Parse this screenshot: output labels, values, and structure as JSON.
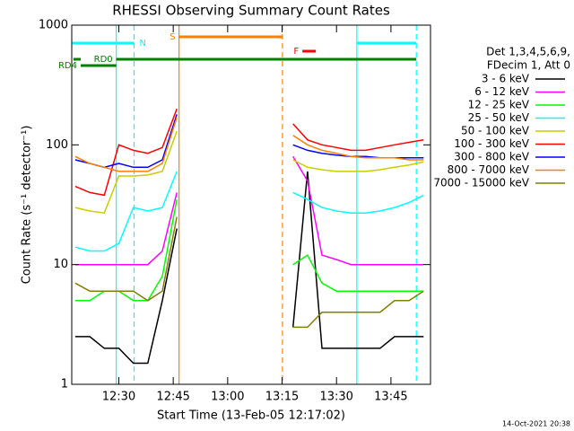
{
  "chart_data": {
    "type": "line",
    "title": "RHESSI Observing Summary Count Rates",
    "xlabel": "Start Time (13-Feb-05 12:17:02)",
    "ylabel": "Count Rate (s⁻¹ detector⁻¹)",
    "footer": "14-Oct-2021 20:38",
    "legend_header": [
      "Det 1,3,4,5,6,9,",
      "FDecim 1, Att 0"
    ],
    "log_y": true,
    "xlim": [
      737.03,
      835.9
    ],
    "xticks": [
      {
        "value": 750,
        "label": "12:30"
      },
      {
        "value": 765,
        "label": "12:45"
      },
      {
        "value": 780,
        "label": "13:00"
      },
      {
        "value": 795,
        "label": "13:15"
      },
      {
        "value": 810,
        "label": "13:30"
      },
      {
        "value": 825,
        "label": "13:45"
      }
    ],
    "ylim": [
      1,
      1000
    ],
    "yticks": [
      1,
      10,
      100,
      1000
    ],
    "x": [
      738,
      742,
      746,
      750,
      754,
      758,
      762,
      766,
      782,
      798,
      802,
      806,
      810,
      814,
      818,
      822,
      826,
      830,
      834
    ],
    "series": [
      {
        "name": "3 - 6 keV",
        "color": "#000000",
        "values": [
          2.5,
          2.5,
          2,
          2,
          1.5,
          1.5,
          5,
          20,
          null,
          3,
          60,
          2,
          2,
          2,
          2,
          2,
          2.5,
          2.5,
          2.5
        ]
      },
      {
        "name": "6 - 12 keV",
        "color": "#ff00ff",
        "values": [
          10,
          10,
          10,
          10,
          10,
          10,
          13,
          40,
          null,
          80,
          50,
          12,
          11,
          10,
          10,
          10,
          10,
          10,
          10
        ]
      },
      {
        "name": "12 - 25 keV",
        "color": "#00ff00",
        "values": [
          5,
          5,
          6,
          6,
          5,
          5,
          8,
          35,
          null,
          10,
          12,
          7,
          6,
          6,
          6,
          6,
          6,
          6,
          6
        ]
      },
      {
        "name": "25 - 50 keV",
        "color": "#00ffff",
        "values": [
          14,
          13,
          13,
          15,
          30,
          28,
          30,
          60,
          null,
          40,
          35,
          30,
          28,
          27,
          27,
          28,
          30,
          33,
          38
        ]
      },
      {
        "name": "50 - 100 keV",
        "color": "#cccc00",
        "values": [
          30,
          28,
          27,
          55,
          55,
          56,
          60,
          130,
          null,
          75,
          65,
          62,
          60,
          60,
          60,
          62,
          65,
          68,
          72
        ]
      },
      {
        "name": "100 - 300 keV",
        "color": "#ff0000",
        "values": [
          45,
          40,
          38,
          100,
          90,
          85,
          95,
          200,
          null,
          150,
          110,
          100,
          95,
          90,
          90,
          95,
          100,
          105,
          110
        ]
      },
      {
        "name": "300 - 800 keV",
        "color": "#0000ff",
        "values": [
          75,
          70,
          65,
          70,
          65,
          65,
          75,
          180,
          null,
          100,
          90,
          85,
          82,
          80,
          80,
          78,
          78,
          78,
          78
        ]
      },
      {
        "name": "800 - 7000 keV",
        "color": "#ff8000",
        "values": [
          80,
          70,
          65,
          60,
          60,
          60,
          70,
          170,
          null,
          120,
          100,
          90,
          85,
          80,
          78,
          78,
          78,
          75,
          75
        ]
      },
      {
        "name": "7000 - 15000 keV",
        "color": "#808000",
        "values": [
          7,
          6,
          6,
          6,
          6,
          5,
          6,
          25,
          null,
          3,
          3,
          4,
          4,
          4,
          4,
          4,
          5,
          5,
          6
        ]
      }
    ],
    "flags": [
      {
        "label": "N",
        "color": "#00ffff",
        "spans": [
          [
            737.03,
            754.2
          ],
          [
            815.6,
            832
          ]
        ]
      },
      {
        "label": "S",
        "color": "#ff8000",
        "spans": [
          [
            766.6,
            795.1
          ]
        ]
      },
      {
        "label": "F",
        "color": "#ff0000",
        "spans": [
          [
            800.6,
            804.3
          ]
        ]
      },
      {
        "label": "RD0",
        "color": "#008000",
        "spans": [
          [
            737.5,
            739.5
          ],
          [
            749.3,
            832
          ]
        ]
      },
      {
        "label": "RD4",
        "color": "#008000",
        "spans": [
          [
            739.5,
            749.3
          ]
        ]
      }
    ],
    "event_lines": [
      {
        "x": 749.3,
        "color": "#00ffff",
        "dashed": false
      },
      {
        "x": 754.2,
        "color": "#00ffff",
        "dashed": true
      },
      {
        "x": 766.6,
        "color": "#ff8000",
        "dashed": false
      },
      {
        "x": 795.1,
        "color": "#ff8000",
        "dashed": true
      },
      {
        "x": 815.6,
        "color": "#00ffff",
        "dashed": false
      },
      {
        "x": 832,
        "color": "#00ffff",
        "dashed": true
      }
    ]
  }
}
